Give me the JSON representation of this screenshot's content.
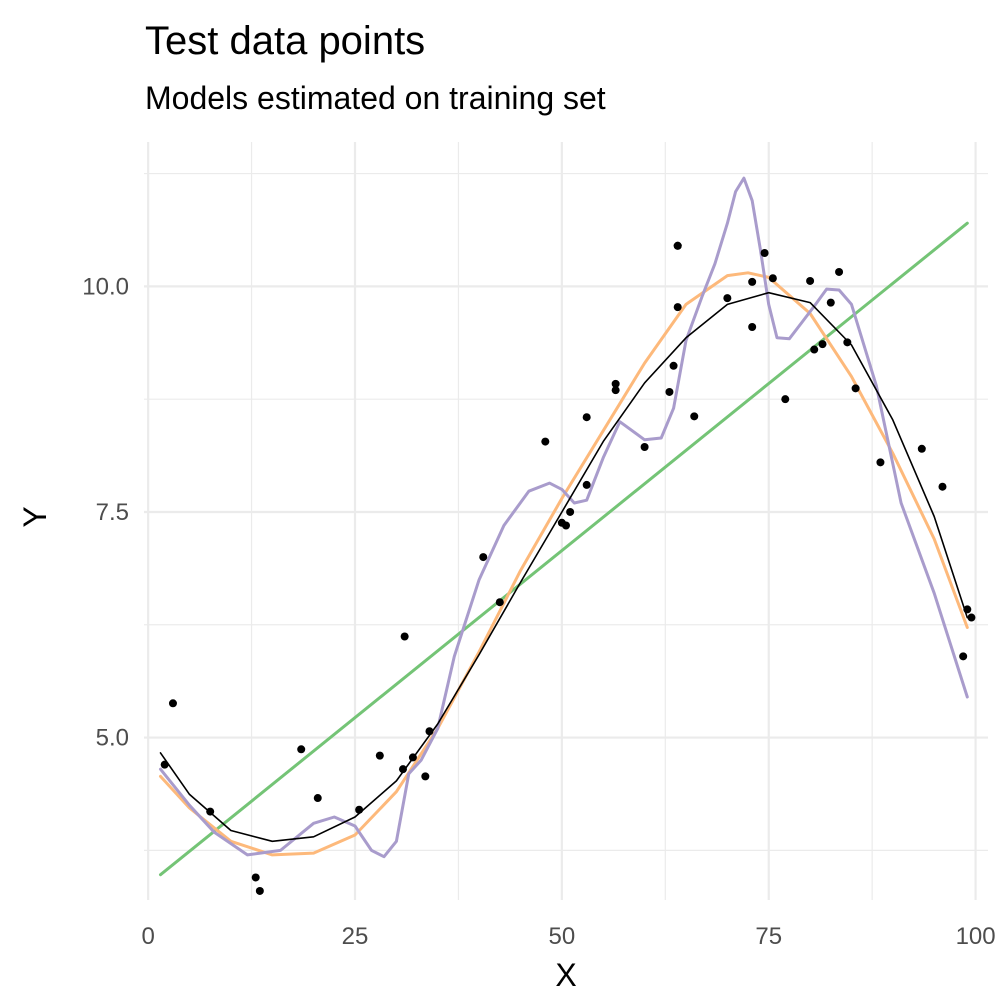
{
  "chart_data": {
    "type": "scatter",
    "title": "Test data points",
    "subtitle": "Models estimated on training set",
    "xlabel": "X",
    "ylabel": "Y",
    "xlim": [
      -0.5,
      101.5
    ],
    "ylim": [
      3.2,
      11.6
    ],
    "x_ticks": [
      0,
      25,
      50,
      75,
      100
    ],
    "x_tick_labels": [
      "0",
      "25",
      "50",
      "75",
      "100"
    ],
    "y_ticks": [
      5.0,
      7.5,
      10.0
    ],
    "y_tick_labels": [
      "5.0",
      "7.5",
      "10.0"
    ],
    "grid": true,
    "legend": "none",
    "points": {
      "color": "#000000",
      "x": [
        2,
        3,
        7.5,
        13,
        13.5,
        18.5,
        20.5,
        25.5,
        28,
        30.8,
        31,
        32,
        33.5,
        34,
        40.5,
        42.5,
        48,
        50,
        50.5,
        51,
        53,
        53,
        56.5,
        56.5,
        60,
        63,
        63.5,
        64,
        64,
        64,
        66,
        70,
        73,
        73,
        74.5,
        75.5,
        77,
        80,
        80.5,
        81.5,
        82.5,
        83.5,
        84.5,
        85.5,
        88.5,
        93.5,
        96,
        98.5,
        99,
        99.5
      ],
      "y": [
        4.7,
        5.38,
        4.18,
        3.45,
        3.3,
        4.87,
        4.33,
        4.2,
        4.8,
        4.65,
        6.12,
        4.78,
        4.57,
        5.07,
        7.0,
        6.5,
        8.28,
        7.38,
        7.35,
        7.5,
        7.8,
        8.55,
        8.85,
        8.92,
        8.22,
        8.83,
        9.12,
        9.77,
        10.45,
        10.45,
        8.56,
        9.87,
        9.55,
        10.05,
        10.37,
        10.09,
        8.75,
        10.06,
        9.3,
        9.36,
        9.82,
        10.16,
        9.38,
        8.87,
        8.05,
        8.2,
        7.78,
        5.9,
        6.42,
        6.33
      ]
    },
    "series": [
      {
        "color": "#74c476",
        "x": [
          1.5,
          99
        ],
        "y": [
          3.48,
          10.7
        ]
      },
      {
        "color": "#fdb97b",
        "x": [
          1.5,
          5,
          10,
          15,
          20,
          25,
          30,
          35,
          40,
          45,
          50,
          55,
          60,
          65,
          70,
          72.5,
          75,
          80,
          85,
          90,
          95,
          99
        ],
        "y": [
          4.57,
          4.22,
          3.85,
          3.7,
          3.72,
          3.92,
          4.4,
          5.1,
          5.95,
          6.85,
          7.65,
          8.4,
          9.15,
          9.8,
          10.12,
          10.15,
          10.1,
          9.7,
          9.0,
          8.15,
          7.2,
          6.22
        ]
      },
      {
        "color": "#a99ccc",
        "x": [
          1.5,
          5,
          8,
          12,
          16,
          20,
          22.5,
          25,
          27,
          28.5,
          30,
          31.5,
          33,
          35,
          37,
          40,
          43,
          46,
          48.5,
          50,
          51.5,
          53,
          55,
          57,
          60,
          62,
          63.5,
          65,
          67,
          68.5,
          70,
          71,
          72,
          73,
          74,
          75,
          76,
          77.5,
          79,
          80.5,
          82,
          83.5,
          85,
          88,
          91,
          95,
          99
        ],
        "y": [
          4.65,
          4.25,
          3.95,
          3.7,
          3.75,
          4.05,
          4.12,
          4.02,
          3.75,
          3.68,
          3.85,
          4.6,
          4.75,
          5.1,
          5.9,
          6.75,
          7.35,
          7.73,
          7.82,
          7.75,
          7.6,
          7.63,
          8.1,
          8.5,
          8.3,
          8.32,
          8.65,
          9.4,
          9.9,
          10.25,
          10.7,
          11.05,
          11.2,
          10.95,
          10.4,
          9.8,
          9.43,
          9.42,
          9.6,
          9.78,
          9.97,
          9.96,
          9.8,
          8.9,
          7.6,
          6.6,
          5.45
        ]
      },
      {
        "color": "#000000",
        "x": [
          1.5,
          5,
          10,
          15,
          20,
          25,
          30,
          35,
          40,
          45,
          50,
          55,
          60,
          65,
          70,
          75,
          80,
          85,
          90,
          95,
          99
        ],
        "y": [
          4.83,
          4.37,
          3.97,
          3.85,
          3.9,
          4.12,
          4.52,
          5.15,
          5.92,
          6.72,
          7.5,
          8.28,
          8.93,
          9.43,
          9.8,
          9.93,
          9.82,
          9.35,
          8.52,
          7.45,
          6.33
        ]
      }
    ]
  }
}
